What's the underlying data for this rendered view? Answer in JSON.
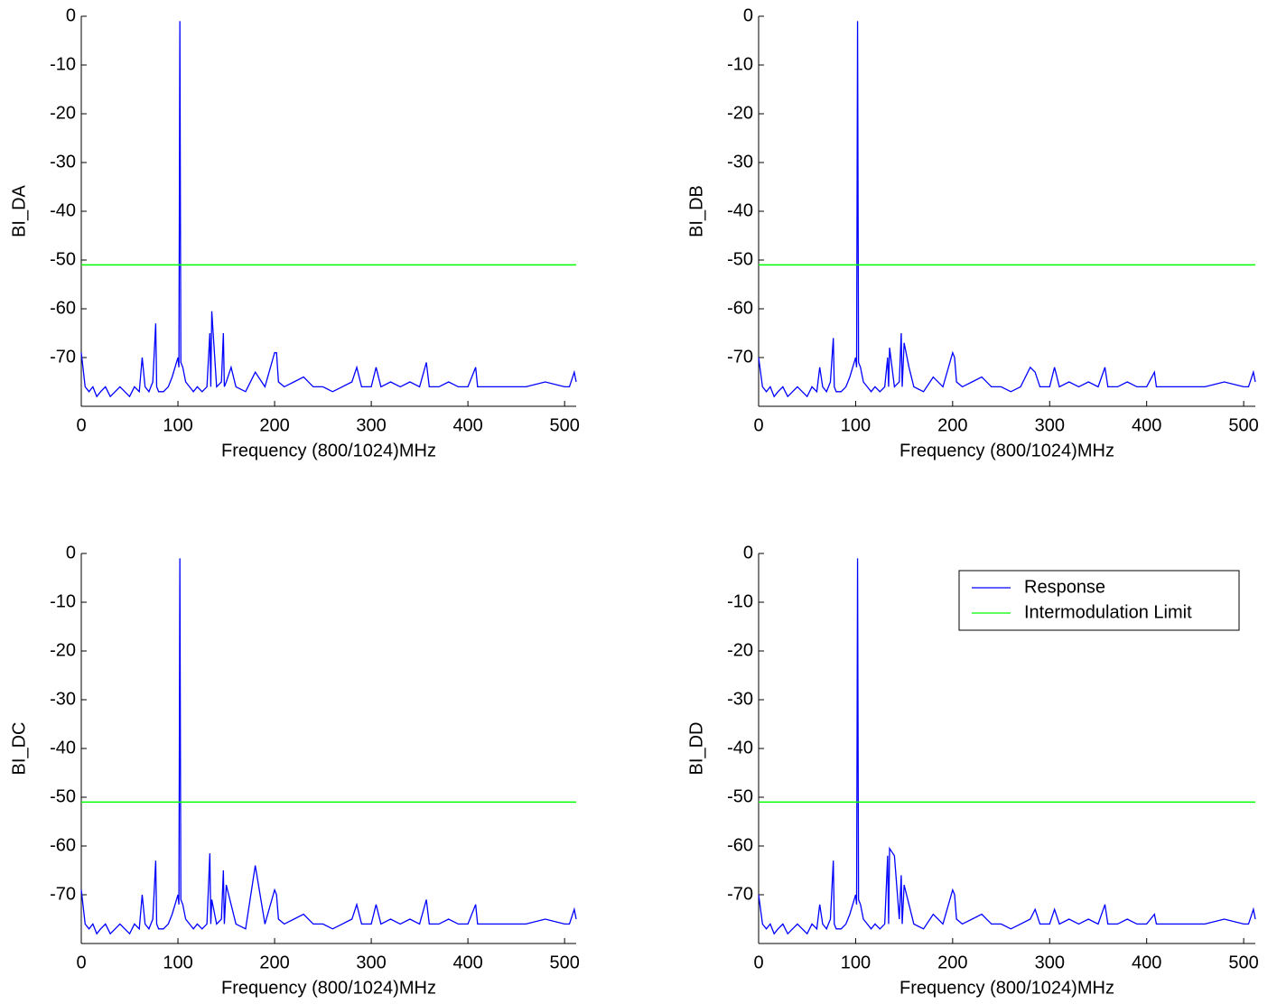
{
  "chart_data": [
    {
      "type": "line",
      "ylabel": "BI_DA",
      "xlabel": "Frequency (800/1024)MHz",
      "xlim": [
        0,
        512
      ],
      "xticks": [
        0,
        100,
        200,
        300,
        400,
        500
      ],
      "ylim": [
        -80,
        0
      ],
      "yticks": [
        0,
        -10,
        -20,
        -30,
        -40,
        -50,
        -60,
        -70
      ],
      "x": [
        0,
        4,
        8,
        12,
        16,
        20,
        25,
        30,
        35,
        40,
        45,
        50,
        55,
        60,
        63,
        66,
        70,
        74,
        77,
        78,
        80,
        85,
        90,
        94,
        97,
        100,
        101,
        102,
        103,
        105,
        108,
        112,
        116,
        120,
        125,
        130,
        133,
        134,
        135,
        140,
        145,
        147,
        148,
        150,
        155,
        160,
        170,
        180,
        190,
        200,
        202,
        204,
        210,
        220,
        230,
        240,
        250,
        260,
        270,
        280,
        285,
        290,
        300,
        305,
        310,
        320,
        330,
        340,
        350,
        357,
        360,
        370,
        380,
        390,
        400,
        408,
        410,
        420,
        440,
        460,
        480,
        500,
        505,
        510,
        512
      ],
      "series": [
        {
          "color": "#0000ff",
          "values": [
            -69,
            -76,
            -77,
            -76,
            -78,
            -77,
            -76,
            -78,
            -77,
            -76,
            -77,
            -78,
            -76,
            -77,
            -70,
            -76,
            -77,
            -75,
            -63,
            -76,
            -77,
            -77,
            -76,
            -74,
            -72,
            -70,
            -72,
            -1,
            -71,
            -72,
            -75,
            -76,
            -77,
            -76,
            -77,
            -76,
            -65,
            -76,
            -60.5,
            -76,
            -75,
            -65,
            -76,
            -75,
            -72,
            -76,
            -77,
            -73,
            -76,
            -69,
            -69,
            -75,
            -76,
            -75,
            -74,
            -76,
            -76,
            -77,
            -76,
            -75,
            -72,
            -76,
            -76,
            -72,
            -76,
            -75,
            -76,
            -75,
            -76,
            -71,
            -76,
            -76,
            -75,
            -76,
            -76,
            -72,
            -76,
            -76,
            -76,
            -76,
            -75,
            -76,
            -76,
            -73,
            -75
          ]
        }
      ],
      "limit": {
        "value": -51,
        "color": "#00ff00"
      }
    },
    {
      "type": "line",
      "ylabel": "BI_DB",
      "xlabel": "Frequency (800/1024)MHz",
      "xlim": [
        0,
        512
      ],
      "xticks": [
        0,
        100,
        200,
        300,
        400,
        500
      ],
      "ylim": [
        -80,
        0
      ],
      "yticks": [
        0,
        -10,
        -20,
        -30,
        -40,
        -50,
        -60,
        -70
      ],
      "x": [
        0,
        4,
        8,
        12,
        16,
        20,
        25,
        30,
        35,
        40,
        45,
        50,
        55,
        60,
        63,
        66,
        70,
        74,
        77,
        78,
        80,
        85,
        90,
        94,
        97,
        100,
        101,
        102,
        103,
        105,
        108,
        112,
        116,
        120,
        125,
        130,
        133,
        134,
        135,
        140,
        145,
        147,
        148,
        150,
        155,
        160,
        170,
        180,
        190,
        200,
        202,
        204,
        210,
        220,
        230,
        240,
        250,
        260,
        270,
        280,
        285,
        290,
        300,
        305,
        310,
        320,
        330,
        340,
        350,
        357,
        360,
        370,
        380,
        390,
        400,
        408,
        410,
        420,
        440,
        460,
        480,
        500,
        505,
        510,
        512
      ],
      "series": [
        {
          "color": "#0000ff",
          "values": [
            -70,
            -76,
            -77,
            -76,
            -78,
            -77,
            -76,
            -78,
            -77,
            -76,
            -77,
            -78,
            -76,
            -77,
            -72,
            -76,
            -77,
            -75,
            -66,
            -76,
            -77,
            -77,
            -76,
            -74,
            -72,
            -70,
            -72,
            -1,
            -71,
            -72,
            -75,
            -76,
            -77,
            -76,
            -77,
            -76,
            -70,
            -76,
            -68,
            -76,
            -75,
            -65,
            -76,
            -67,
            -72,
            -76,
            -77,
            -74,
            -76,
            -69,
            -70,
            -75,
            -76,
            -75,
            -74,
            -76,
            -76,
            -77,
            -76,
            -72,
            -73,
            -76,
            -76,
            -72,
            -76,
            -75,
            -76,
            -75,
            -76,
            -72,
            -76,
            -76,
            -75,
            -76,
            -76,
            -73,
            -76,
            -76,
            -76,
            -76,
            -75,
            -76,
            -76,
            -73,
            -75
          ]
        }
      ],
      "limit": {
        "value": -51,
        "color": "#00ff00"
      }
    },
    {
      "type": "line",
      "ylabel": "BI_DC",
      "xlabel": "Frequency (800/1024)MHz",
      "xlim": [
        0,
        512
      ],
      "xticks": [
        0,
        100,
        200,
        300,
        400,
        500
      ],
      "ylim": [
        -80,
        0
      ],
      "yticks": [
        0,
        -10,
        -20,
        -30,
        -40,
        -50,
        -60,
        -70
      ],
      "x": [
        0,
        4,
        8,
        12,
        16,
        20,
        25,
        30,
        35,
        40,
        45,
        50,
        55,
        60,
        63,
        66,
        70,
        74,
        77,
        78,
        80,
        85,
        90,
        94,
        97,
        100,
        101,
        102,
        103,
        105,
        108,
        112,
        116,
        120,
        125,
        130,
        133,
        134,
        135,
        140,
        145,
        147,
        148,
        150,
        155,
        160,
        170,
        180,
        190,
        200,
        202,
        204,
        210,
        220,
        230,
        240,
        250,
        260,
        270,
        280,
        285,
        290,
        300,
        305,
        310,
        320,
        330,
        340,
        350,
        357,
        360,
        370,
        380,
        390,
        400,
        408,
        410,
        420,
        440,
        460,
        480,
        500,
        505,
        510,
        512
      ],
      "series": [
        {
          "color": "#0000ff",
          "values": [
            -69,
            -76,
            -77,
            -76,
            -78,
            -77,
            -76,
            -78,
            -77,
            -76,
            -77,
            -78,
            -76,
            -77,
            -70,
            -76,
            -77,
            -75,
            -63,
            -76,
            -77,
            -77,
            -76,
            -74,
            -72,
            -70,
            -72,
            -1,
            -71,
            -72,
            -75,
            -76,
            -77,
            -76,
            -77,
            -76,
            -61.5,
            -76,
            -71,
            -76,
            -75,
            -65,
            -76,
            -68,
            -72,
            -76,
            -77,
            -64,
            -76,
            -69,
            -70,
            -75,
            -76,
            -75,
            -74,
            -76,
            -76,
            -77,
            -76,
            -75,
            -72,
            -76,
            -76,
            -72,
            -76,
            -75,
            -76,
            -75,
            -76,
            -71,
            -76,
            -76,
            -75,
            -76,
            -76,
            -72,
            -76,
            -76,
            -76,
            -76,
            -75,
            -76,
            -76,
            -73,
            -75
          ]
        }
      ],
      "limit": {
        "value": -51,
        "color": "#00ff00"
      }
    },
    {
      "type": "line",
      "ylabel": "BI_DD",
      "xlabel": "Frequency (800/1024)MHz",
      "xlim": [
        0,
        512
      ],
      "xticks": [
        0,
        100,
        200,
        300,
        400,
        500
      ],
      "ylim": [
        -80,
        0
      ],
      "yticks": [
        0,
        -10,
        -20,
        -30,
        -40,
        -50,
        -60,
        -70
      ],
      "x": [
        0,
        4,
        8,
        12,
        16,
        20,
        25,
        30,
        35,
        40,
        45,
        50,
        55,
        60,
        63,
        66,
        70,
        74,
        77,
        78,
        80,
        85,
        90,
        94,
        97,
        100,
        101,
        102,
        103,
        105,
        108,
        112,
        116,
        120,
        125,
        130,
        133,
        134,
        135,
        140,
        145,
        147,
        148,
        150,
        155,
        160,
        170,
        180,
        190,
        200,
        202,
        204,
        210,
        220,
        230,
        240,
        250,
        260,
        270,
        280,
        285,
        290,
        300,
        305,
        310,
        320,
        330,
        340,
        350,
        357,
        360,
        370,
        380,
        390,
        400,
        408,
        410,
        420,
        440,
        460,
        480,
        500,
        505,
        510,
        512
      ],
      "series": [
        {
          "name": "Response",
          "color": "#0000ff",
          "values": [
            -70,
            -76,
            -77,
            -76,
            -78,
            -77,
            -76,
            -78,
            -77,
            -76,
            -77,
            -78,
            -76,
            -77,
            -72,
            -76,
            -77,
            -75,
            -63,
            -76,
            -77,
            -77,
            -76,
            -74,
            -72,
            -70,
            -72,
            -1,
            -71,
            -72,
            -75,
            -76,
            -77,
            -76,
            -77,
            -76,
            -62,
            -76,
            -60.5,
            -62,
            -75,
            -66,
            -76,
            -68,
            -72,
            -76,
            -77,
            -74,
            -76,
            -69,
            -70,
            -75,
            -76,
            -75,
            -74,
            -76,
            -76,
            -77,
            -76,
            -75,
            -73,
            -76,
            -76,
            -73,
            -76,
            -75,
            -76,
            -75,
            -76,
            -72,
            -76,
            -76,
            -75,
            -76,
            -76,
            -74,
            -76,
            -76,
            -76,
            -76,
            -75,
            -76,
            -76,
            -73,
            -75
          ]
        }
      ],
      "limit": {
        "name": "Intermodulation Limit",
        "value": -51,
        "color": "#00ff00"
      },
      "legend": "upper right"
    }
  ]
}
